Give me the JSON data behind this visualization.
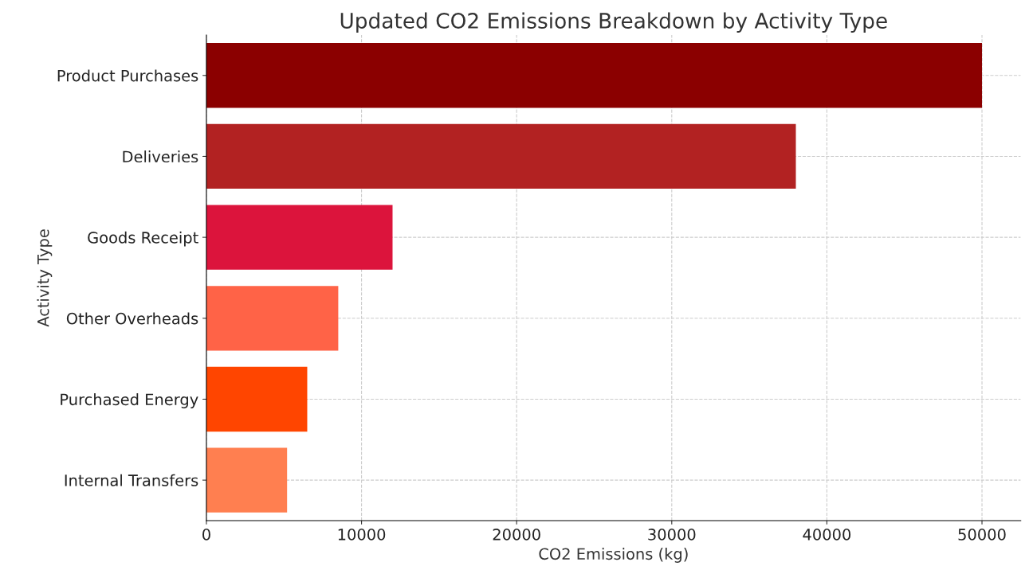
{
  "chart_data": {
    "type": "bar",
    "orientation": "horizontal",
    "title": "Updated CO2 Emissions Breakdown by Activity Type",
    "xlabel": "CO2 Emissions (kg)",
    "ylabel": "Activity Type",
    "categories": [
      "Product Purchases",
      "Deliveries",
      "Goods Receipt",
      "Other Overheads",
      "Purchased Energy",
      "Internal Transfers"
    ],
    "values": [
      50000,
      38000,
      12000,
      8500,
      6500,
      5200
    ],
    "colors": [
      "#8b0000",
      "#b22222",
      "#dc143c",
      "#ff6347",
      "#ff4500",
      "#ff7f50"
    ],
    "xlim": [
      0,
      52500
    ],
    "xticks": [
      0,
      10000,
      20000,
      30000,
      40000,
      50000
    ],
    "grid": true
  }
}
